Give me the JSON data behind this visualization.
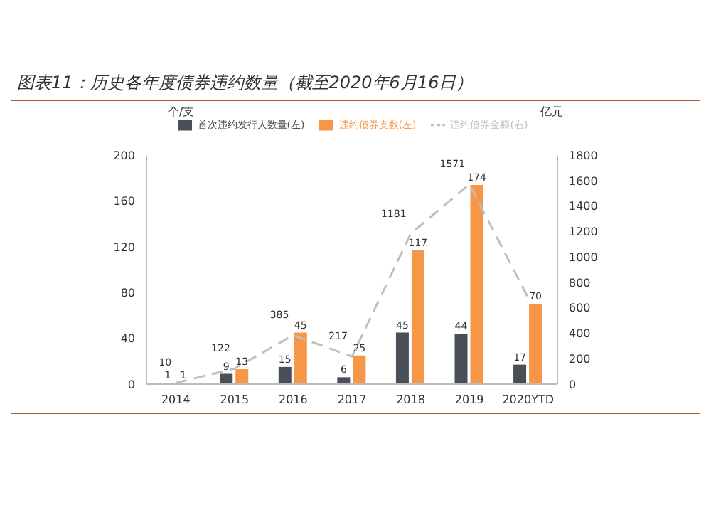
{
  "chart_data": {
    "type": "bar",
    "title": "图表11：历史各年度债券违约数量（截至2020年6月16日）",
    "ylabel": "个/支",
    "y2label": "亿元",
    "categories": [
      "2014",
      "2015",
      "2016",
      "2017",
      "2018",
      "2019",
      "2020YTD"
    ],
    "series": [
      {
        "name": "首次违约发行人数量(左)",
        "color": "#4a4f57",
        "values": [
          1,
          9,
          15,
          6,
          45,
          44,
          17
        ],
        "value_labels": [
          "1",
          "9",
          "15",
          "6",
          "45",
          "44",
          "17"
        ]
      },
      {
        "name": "违约债券支数(左)",
        "color": "#f79646",
        "values": [
          1,
          13,
          45,
          25,
          117,
          174,
          70
        ],
        "value_labels": [
          "1",
          "13",
          "45",
          "25",
          "117",
          "174",
          "70"
        ]
      },
      {
        "name": "违约债券金额(右)",
        "type": "line",
        "axis": "y2",
        "color": "#bfbfbf",
        "line_style": "dashed",
        "marker": "none",
        "values": [
          10,
          122,
          385,
          217,
          1181,
          1571,
          680
        ],
        "value_labels": [
          "10",
          "122",
          "385",
          "217",
          "1181",
          "1571",
          null
        ]
      }
    ],
    "ylim": [
      0,
      200
    ],
    "yticks": [
      0,
      40,
      80,
      120,
      160,
      200
    ],
    "y2lim": [
      0,
      1800
    ],
    "y2ticks": [
      0,
      200,
      400,
      600,
      800,
      1000,
      1200,
      1400,
      1600,
      1800
    ],
    "grid": false,
    "legend": "top"
  }
}
